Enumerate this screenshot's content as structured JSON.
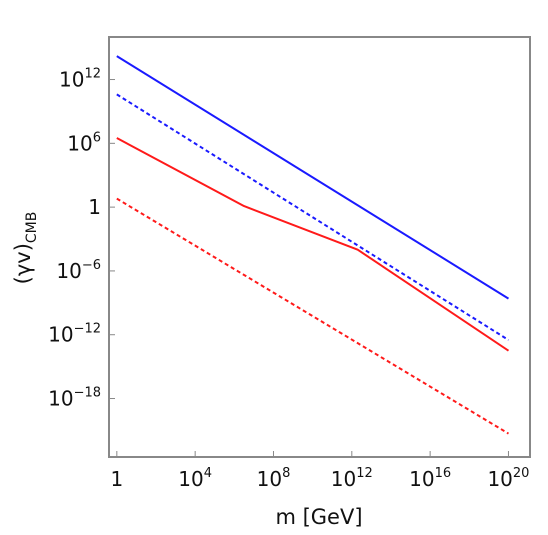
{
  "chart_data": {
    "type": "line",
    "title": "",
    "xlabel": "m [GeV]",
    "ylabel": {
      "main": "(γv)",
      "subscript": "CMB"
    },
    "xscale": "log",
    "yscale": "log",
    "xlim_log10": [
      -0.4,
      21.1
    ],
    "ylim_log10": [
      -23.5,
      16.0
    ],
    "xticks": [
      {
        "value_log10": 0,
        "base": "1",
        "exp": ""
      },
      {
        "value_log10": 4,
        "base": "10",
        "exp": "4"
      },
      {
        "value_log10": 8,
        "base": "10",
        "exp": "8"
      },
      {
        "value_log10": 12,
        "base": "10",
        "exp": "12"
      },
      {
        "value_log10": 16,
        "base": "10",
        "exp": "16"
      },
      {
        "value_log10": 20,
        "base": "10",
        "exp": "20"
      }
    ],
    "yticks": [
      {
        "value_log10": 12,
        "base": "10",
        "exp": "12"
      },
      {
        "value_log10": 6,
        "base": "10",
        "exp": "6"
      },
      {
        "value_log10": 0,
        "base": "1",
        "exp": ""
      },
      {
        "value_log10": -6,
        "base": "10",
        "exp": "−6"
      },
      {
        "value_log10": -12,
        "base": "10",
        "exp": "−12"
      },
      {
        "value_log10": -18,
        "base": "10",
        "exp": "−18"
      }
    ],
    "grid": false,
    "legend": "none",
    "series": [
      {
        "color": "#1a1aff",
        "dash": "solid",
        "points_log10": [
          [
            0,
            14.2
          ],
          [
            20,
            -8.6
          ]
        ]
      },
      {
        "color": "#1a1aff",
        "dash": "dashed",
        "points_log10": [
          [
            0,
            10.6
          ],
          [
            20,
            -12.5
          ]
        ]
      },
      {
        "color": "#ff1a1a",
        "dash": "solid",
        "points_log10": [
          [
            0,
            6.5
          ],
          [
            6.5,
            0.1
          ],
          [
            12.3,
            -4.0
          ],
          [
            20,
            -13.5
          ]
        ]
      },
      {
        "color": "#ff1a1a",
        "dash": "dashed",
        "points_log10": [
          [
            0,
            0.8
          ],
          [
            20,
            -21.3
          ]
        ]
      }
    ]
  }
}
